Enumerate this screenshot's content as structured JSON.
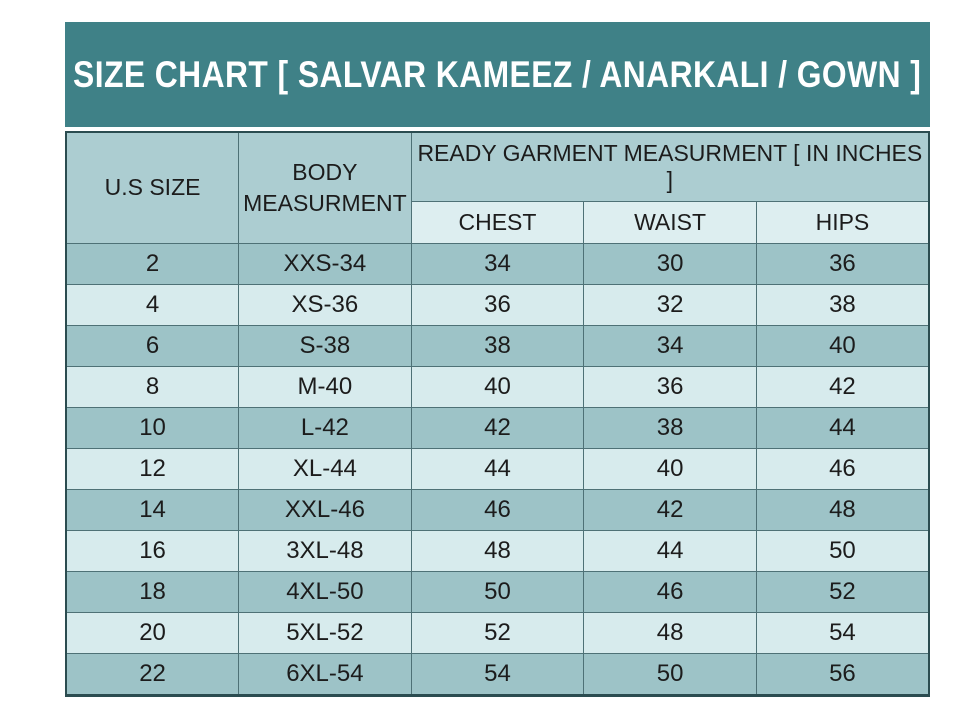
{
  "title": "SIZE CHART [ SALVAR KAMEEZ / ANARKALI / GOWN ]",
  "colors": {
    "title_band_bg": "#3F8187",
    "title_text": "#FFFFFF",
    "header_cell_bg": "#ACCDD1",
    "subheader_cell_bg": "#DDEEF0",
    "row_dark_bg": "#9DC3C7",
    "row_light_bg": "#D7EBED",
    "border": "#4E7176",
    "outer_border": "#2B4C50",
    "cell_text": "#1C1C1C"
  },
  "table": {
    "col1_header": "U.S SIZE",
    "col2_header": "BODY MEASURMENT",
    "group_header": "READY GARMENT MEASURMENT [ IN INCHES ]",
    "sub_headers": [
      "CHEST",
      "WAIST",
      "HIPS"
    ],
    "row_keys": [
      "us_size",
      "body_measurment",
      "chest",
      "waist",
      "hips"
    ],
    "rows": [
      {
        "us_size": "2",
        "body_measurment": "XXS-34",
        "chest": "34",
        "waist": "30",
        "hips": "36"
      },
      {
        "us_size": "4",
        "body_measurment": "XS-36",
        "chest": "36",
        "waist": "32",
        "hips": "38"
      },
      {
        "us_size": "6",
        "body_measurment": "S-38",
        "chest": "38",
        "waist": "34",
        "hips": "40"
      },
      {
        "us_size": "8",
        "body_measurment": "M-40",
        "chest": "40",
        "waist": "36",
        "hips": "42"
      },
      {
        "us_size": "10",
        "body_measurment": "L-42",
        "chest": "42",
        "waist": "38",
        "hips": "44"
      },
      {
        "us_size": "12",
        "body_measurment": "XL-44",
        "chest": "44",
        "waist": "40",
        "hips": "46"
      },
      {
        "us_size": "14",
        "body_measurment": "XXL-46",
        "chest": "46",
        "waist": "42",
        "hips": "48"
      },
      {
        "us_size": "16",
        "body_measurment": "3XL-48",
        "chest": "48",
        "waist": "44",
        "hips": "50"
      },
      {
        "us_size": "18",
        "body_measurment": "4XL-50",
        "chest": "50",
        "waist": "46",
        "hips": "52"
      },
      {
        "us_size": "20",
        "body_measurment": "5XL-52",
        "chest": "52",
        "waist": "48",
        "hips": "54"
      },
      {
        "us_size": "22",
        "body_measurment": "6XL-54",
        "chest": "54",
        "waist": "50",
        "hips": "56"
      }
    ]
  },
  "chart_data": {
    "type": "table",
    "title": "SIZE CHART [ SALVAR KAMEEZ / ANARKALI / GOWN ]",
    "columns": [
      "U.S SIZE",
      "BODY MEASURMENT",
      "CHEST",
      "WAIST",
      "HIPS"
    ],
    "column_groups": [
      {
        "label": "READY GARMENT MEASURMENT [ IN INCHES ]",
        "spans": [
          "CHEST",
          "WAIST",
          "HIPS"
        ]
      }
    ],
    "rows": [
      [
        "2",
        "XXS-34",
        34,
        30,
        36
      ],
      [
        "4",
        "XS-36",
        36,
        32,
        38
      ],
      [
        "6",
        "S-38",
        38,
        34,
        40
      ],
      [
        "8",
        "M-40",
        40,
        36,
        42
      ],
      [
        "10",
        "L-42",
        42,
        38,
        44
      ],
      [
        "12",
        "XL-44",
        44,
        40,
        46
      ],
      [
        "14",
        "XXL-46",
        46,
        42,
        48
      ],
      [
        "16",
        "3XL-48",
        48,
        44,
        50
      ],
      [
        "18",
        "4XL-50",
        50,
        46,
        52
      ],
      [
        "20",
        "5XL-52",
        52,
        48,
        54
      ],
      [
        "22",
        "6XL-54",
        54,
        50,
        56
      ]
    ]
  }
}
